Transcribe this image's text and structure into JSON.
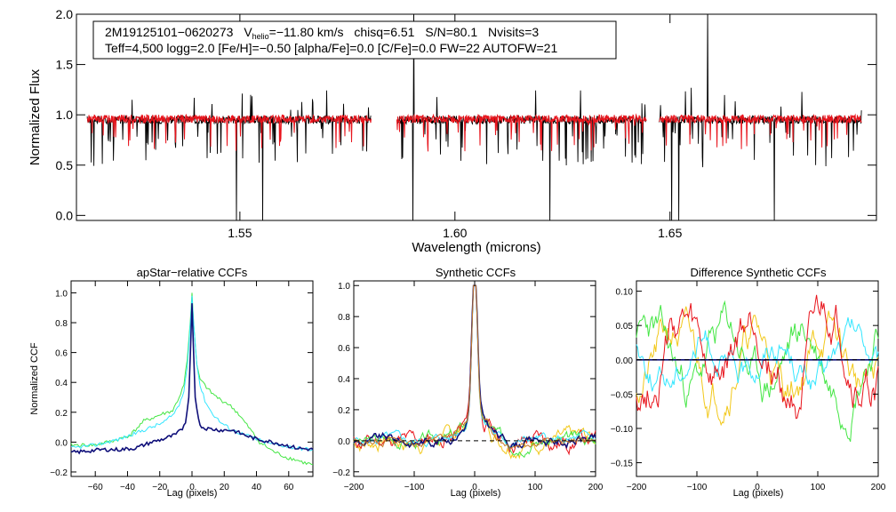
{
  "header": {
    "line1_object": "2M19125101−0620273",
    "line1_vhelio_base": "V",
    "line1_vhelio_sub": "helio",
    "line1_vhelio_value": "=−11.80 km/s",
    "line1_chisq": "chisq=6.51",
    "line1_sn": "S/N=80.1",
    "line1_nvisits": "Nvisits=3",
    "line2": "Teff=4,500 logg=2.0 [Fe/H]=−0.50 [alpha/Fe]=0.0 [C/Fe]=0.0 FW=22 AUTOFW=21"
  },
  "colors": {
    "observed": "#000000",
    "model": "#e8141c",
    "navy": "#10107a",
    "cyan": "#33e6ff",
    "green": "#44e644",
    "red": "#e8141c",
    "yellow": "#f2c81a",
    "orange": "#c87a2a"
  },
  "chart_data": [
    {
      "id": "spectrum",
      "type": "line",
      "title": "",
      "xlabel": "Wavelength (microns)",
      "ylabel": "Normalized Flux",
      "xlim": [
        1.512,
        1.698
      ],
      "ylim": [
        -0.05,
        2.0
      ],
      "xticks": [
        1.55,
        1.6,
        1.65
      ],
      "xtick_labels": [
        "1.55",
        "1.60",
        "1.65"
      ],
      "yticks": [
        0.0,
        0.5,
        1.0,
        1.5,
        2.0
      ],
      "ytick_labels": [
        "0.0",
        "0.5",
        "1.0",
        "1.5",
        "2.0"
      ],
      "segments": [
        [
          1.5145,
          1.5805
        ],
        [
          1.5865,
          1.6445
        ],
        [
          1.6475,
          1.6945
        ]
      ],
      "series": [
        {
          "name": "observed",
          "color": "#000000",
          "baseline": 0.95
        },
        {
          "name": "model",
          "color": "#e8141c",
          "baseline": 0.96
        }
      ]
    },
    {
      "id": "ccf_apstar",
      "type": "line",
      "title": "apStar−relative CCFs",
      "xlabel": "Lag (pixels)",
      "ylabel": "Normalized CCF",
      "xlim": [
        -75,
        75
      ],
      "ylim": [
        -0.23,
        1.08
      ],
      "xticks": [
        -60,
        -40,
        -20,
        0,
        20,
        40,
        60
      ],
      "xtick_labels": [
        "−60",
        "−40",
        "−20",
        "0",
        "20",
        "40",
        "60"
      ],
      "yticks": [
        -0.2,
        0.0,
        0.2,
        0.4,
        0.6,
        0.8,
        1.0
      ],
      "ytick_labels": [
        "−0.2",
        "0.0",
        "0.2",
        "0.4",
        "0.6",
        "0.8",
        "1.0"
      ],
      "series": [
        {
          "name": "green",
          "color": "#44e644",
          "x": [
            -75,
            -60,
            -45,
            -38,
            -30,
            -25,
            -18,
            -12,
            -8,
            -5,
            -3,
            -1,
            0,
            1,
            3,
            5,
            8,
            12,
            18,
            22,
            28,
            35,
            42,
            50,
            58,
            65,
            70,
            75
          ],
          "y": [
            -0.02,
            -0.02,
            0.02,
            0.05,
            0.14,
            0.16,
            0.19,
            0.21,
            0.3,
            0.38,
            0.55,
            0.82,
            1.0,
            0.8,
            0.52,
            0.42,
            0.38,
            0.33,
            0.28,
            0.26,
            0.2,
            0.1,
            0.0,
            -0.06,
            -0.1,
            -0.12,
            -0.14,
            -0.15
          ]
        },
        {
          "name": "cyan",
          "color": "#33e6ff",
          "x": [
            -75,
            -60,
            -45,
            -35,
            -25,
            -18,
            -12,
            -8,
            -5,
            -3,
            -1,
            0,
            1,
            3,
            5,
            8,
            12,
            18,
            25,
            35,
            45,
            55,
            65,
            75
          ],
          "y": [
            -0.04,
            -0.02,
            0.02,
            0.06,
            0.1,
            0.13,
            0.18,
            0.25,
            0.35,
            0.5,
            0.8,
            0.98,
            0.8,
            0.52,
            0.38,
            0.28,
            0.2,
            0.13,
            0.08,
            0.04,
            0.0,
            -0.02,
            -0.04,
            -0.05
          ]
        },
        {
          "name": "navy",
          "color": "#10107a",
          "x": [
            -75,
            -65,
            -55,
            -45,
            -35,
            -25,
            -18,
            -10,
            -6,
            -4,
            -2,
            -1,
            0,
            1,
            2,
            4,
            6,
            10,
            18,
            25,
            32,
            40,
            50,
            58,
            65,
            75
          ],
          "y": [
            -0.07,
            -0.06,
            -0.05,
            -0.05,
            -0.04,
            0.0,
            0.02,
            0.05,
            0.09,
            0.14,
            0.3,
            0.6,
            0.93,
            0.6,
            0.3,
            0.15,
            0.1,
            0.09,
            0.08,
            0.08,
            0.05,
            0.02,
            0.0,
            -0.02,
            -0.04,
            -0.05
          ]
        }
      ]
    },
    {
      "id": "ccf_synthetic",
      "type": "line",
      "title": "Synthetic CCFs",
      "xlabel": "Lag (pixels)",
      "ylabel": "",
      "xlim": [
        -200,
        200
      ],
      "ylim": [
        -0.23,
        1.03
      ],
      "xticks": [
        -200,
        -100,
        0,
        100,
        200
      ],
      "xtick_labels": [
        "−200",
        "−100",
        "0",
        "100",
        "200"
      ],
      "yticks": [
        -0.2,
        0.0,
        0.2,
        0.4,
        0.6,
        0.8,
        1.0
      ],
      "ytick_labels": [
        "−0.2",
        "0.0",
        "0.2",
        "0.4",
        "0.6",
        "0.8",
        "1.0"
      ],
      "zero_line": true,
      "series": [
        {
          "name": "yellow",
          "color": "#f2c81a",
          "seed": 7,
          "amp": 0.07
        },
        {
          "name": "red",
          "color": "#e8141c",
          "seed": 11,
          "amp": 0.07
        },
        {
          "name": "green",
          "color": "#44e644",
          "seed": 3,
          "amp": 0.05
        },
        {
          "name": "cyan",
          "color": "#33e6ff",
          "seed": 5,
          "amp": 0.04
        },
        {
          "name": "navy",
          "color": "#10107a",
          "seed": 9,
          "amp": 0.04
        },
        {
          "name": "orange",
          "color": "#c87a2a",
          "seed": 13,
          "amp": 0.035
        }
      ]
    },
    {
      "id": "ccf_difference",
      "type": "line",
      "title": "Difference Synthetic CCFs",
      "xlabel": "Lag (pixels)",
      "ylabel": "",
      "xlim": [
        -200,
        200
      ],
      "ylim": [
        -0.17,
        0.115
      ],
      "xticks": [
        -200,
        -100,
        0,
        100,
        200
      ],
      "xtick_labels": [
        "−200",
        "−100",
        "0",
        "100",
        "200"
      ],
      "yticks": [
        -0.15,
        -0.1,
        -0.05,
        0.0,
        0.05,
        0.1
      ],
      "ytick_labels": [
        "−0.15",
        "−0.10",
        "−0.05",
        "0.00",
        "0.05",
        "0.10"
      ],
      "zero_line": true,
      "series": [
        {
          "name": "yellow",
          "color": "#f2c81a",
          "seed": 21,
          "amp": 0.06
        },
        {
          "name": "green",
          "color": "#44e644",
          "seed": 23,
          "amp": 0.06
        },
        {
          "name": "cyan",
          "color": "#33e6ff",
          "seed": 25,
          "amp": 0.045
        },
        {
          "name": "red",
          "color": "#e8141c",
          "seed": 27,
          "amp": 0.07
        },
        {
          "name": "navy",
          "color": "#10107a",
          "flat": true
        }
      ]
    }
  ]
}
